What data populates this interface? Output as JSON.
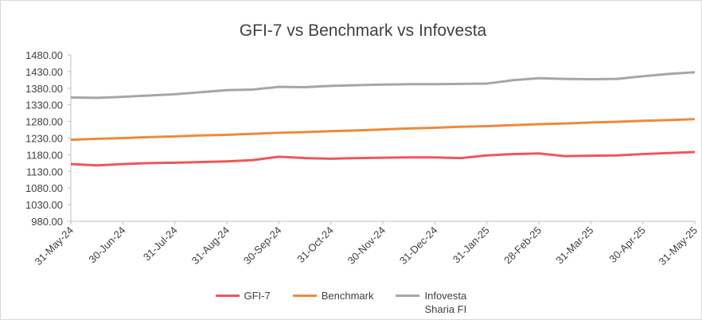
{
  "chart_data": {
    "type": "line",
    "title": "GFI-7 vs Benchmark vs Infovesta",
    "categories": [
      "31-May-24",
      null,
      "30-Jun-24",
      null,
      "31-Jul-24",
      null,
      "31-Aug-24",
      null,
      "30-Sep-24",
      null,
      "31-Oct-24",
      null,
      "30-Nov-24",
      null,
      "31-Dec-24",
      null,
      "31-Jan-25",
      null,
      "28-Feb-25",
      null,
      "31-Mar-25",
      null,
      "30-Apr-25",
      null,
      "31-May-25"
    ],
    "series": [
      {
        "name": "GFI-7",
        "color": "#f0565b",
        "values": [
          1152,
          1148,
          1152,
          1155,
          1156,
          1158,
          1160,
          1164,
          1174,
          1170,
          1168,
          1170,
          1171,
          1172,
          1172,
          1170,
          1178,
          1182,
          1184,
          1176,
          1177,
          1178,
          1182,
          1185,
          1188
        ]
      },
      {
        "name": "Benchmark",
        "color": "#ee8a3a",
        "values": [
          1225,
          1228,
          1230,
          1233,
          1235,
          1238,
          1240,
          1243,
          1246,
          1248,
          1251,
          1253,
          1256,
          1259,
          1261,
          1264,
          1266,
          1269,
          1272,
          1274,
          1277,
          1279,
          1282,
          1284,
          1287
        ]
      },
      {
        "name": "Infovesta Sharia FI",
        "color": "#a6a6a6",
        "values": [
          1352,
          1351,
          1354,
          1358,
          1362,
          1368,
          1374,
          1376,
          1384,
          1383,
          1387,
          1389,
          1391,
          1392,
          1392,
          1393,
          1394,
          1404,
          1410,
          1408,
          1407,
          1408,
          1416,
          1423,
          1428
        ]
      }
    ],
    "ylim": [
      980,
      1480
    ],
    "yticks": [
      {
        "value": 980,
        "label": "980.00"
      },
      {
        "value": 1030,
        "label": "1030.00"
      },
      {
        "value": 1080,
        "label": "1080.00"
      },
      {
        "value": 1130,
        "label": "1130.00"
      },
      {
        "value": 1180,
        "label": "1180.00"
      },
      {
        "value": 1230,
        "label": "1230.00"
      },
      {
        "value": 1280,
        "label": "1280.00"
      },
      {
        "value": 1330,
        "label": "1330.00"
      },
      {
        "value": 1380,
        "label": "1380.00"
      },
      {
        "value": 1430,
        "label": "1430.00"
      },
      {
        "value": 1480,
        "label": "1480.00"
      }
    ],
    "legend": "bottom"
  }
}
